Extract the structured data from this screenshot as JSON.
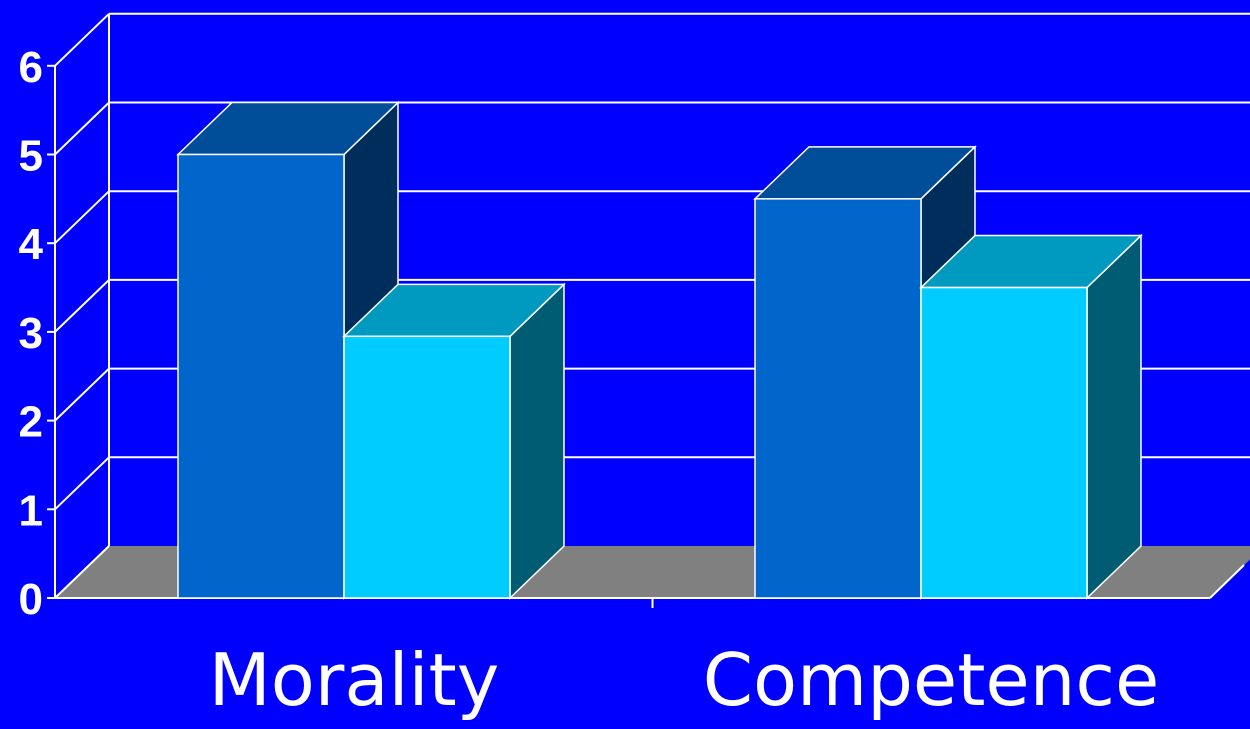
{
  "chart_data": {
    "type": "bar",
    "title": "",
    "xlabel": "",
    "ylabel": "",
    "categories": [
      "Morality",
      "Competence"
    ],
    "series": [
      {
        "values": [
          5.0,
          4.5
        ],
        "color": "#0066cc"
      },
      {
        "values": [
          2.95,
          3.5
        ],
        "color": "#00ccff"
      }
    ],
    "ylim": [
      0,
      6
    ],
    "yticks": [
      "0",
      "1",
      "2",
      "3",
      "4",
      "5",
      "6"
    ],
    "grid": true,
    "three_d": true,
    "colors": {
      "background": "#0000ff",
      "floor": "#808080",
      "grid": "#ffffff",
      "text": "#ffffff"
    }
  }
}
